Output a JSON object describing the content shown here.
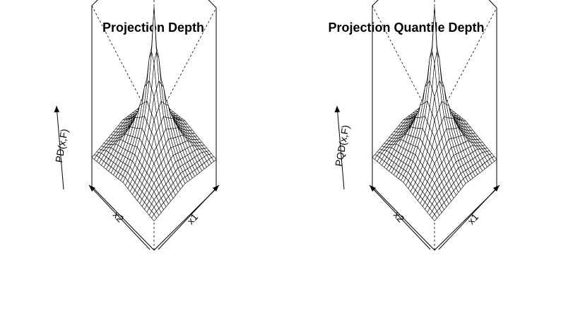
{
  "chart_data": [
    {
      "type": "surface",
      "title": "Projection Depth",
      "zlabel": "PD(x,F)",
      "xlabel": "x1",
      "ylabel": "x2",
      "surface": "pyramid-peak",
      "zlim": [
        0,
        1
      ]
    },
    {
      "type": "surface",
      "title": "Projection Quantile Depth",
      "zlabel": "PQD(x,F)",
      "xlabel": "x1",
      "ylabel": "x2",
      "surface": "pyramid-peak",
      "zlim": [
        0,
        1
      ]
    }
  ]
}
